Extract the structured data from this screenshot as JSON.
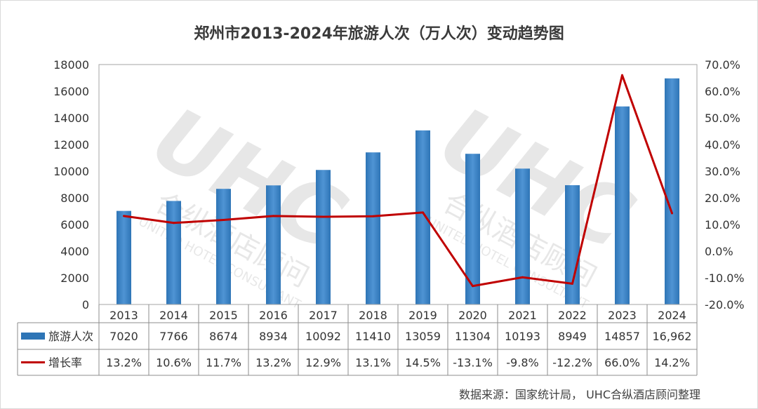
{
  "title": "郑州市2013-2024年旅游人次（万人次）变动趋势图",
  "source": "数据来源：国家统计局， UHC合纵酒店顾问整理",
  "watermark": {
    "logo": "UHC",
    "cn": "合纵酒店顾问",
    "en": "UNITED HOTEL CONSULTANT"
  },
  "colors": {
    "bar": "#2e75b6",
    "bar_light": "#4f94d4",
    "line": "#c00000"
  },
  "chart_data": {
    "type": "bar",
    "categories": [
      "2013",
      "2014",
      "2015",
      "2016",
      "2017",
      "2018",
      "2019",
      "2020",
      "2021",
      "2022",
      "2023",
      "2024"
    ],
    "series": [
      {
        "name": "旅游人次",
        "type": "bar",
        "axis": "left",
        "values": [
          7020,
          7766,
          8674,
          8934,
          10092,
          11410,
          13059,
          11304,
          10193,
          8949,
          14857,
          16962
        ],
        "labels": [
          "7020",
          "7766",
          "8674",
          "8934",
          "10092",
          "11410",
          "13059",
          "11304",
          "10193",
          "8949",
          "14857",
          "16,962"
        ]
      },
      {
        "name": "增长率",
        "type": "line",
        "axis": "right",
        "values": [
          13.2,
          10.6,
          11.7,
          13.2,
          12.9,
          13.1,
          14.5,
          -13.1,
          -9.8,
          -12.2,
          66.0,
          14.2
        ],
        "labels": [
          "13.2%",
          "10.6%",
          "11.7%",
          "13.2%",
          "12.9%",
          "13.1%",
          "14.5%",
          "-13.1%",
          "-9.8%",
          "-12.2%",
          "66.0%",
          "14.2%"
        ]
      }
    ],
    "y_left": {
      "ylim": [
        0,
        18000
      ],
      "ticks": [
        "0",
        "2000",
        "4000",
        "6000",
        "8000",
        "10000",
        "12000",
        "14000",
        "16000",
        "18000"
      ]
    },
    "y_right": {
      "ylim": [
        -20,
        70
      ],
      "ticks": [
        "-20.0%",
        "-10.0%",
        "0.0%",
        "10.0%",
        "20.0%",
        "30.0%",
        "40.0%",
        "50.0%",
        "60.0%",
        "70.0%"
      ]
    },
    "grid": false,
    "legend": "data-table"
  }
}
